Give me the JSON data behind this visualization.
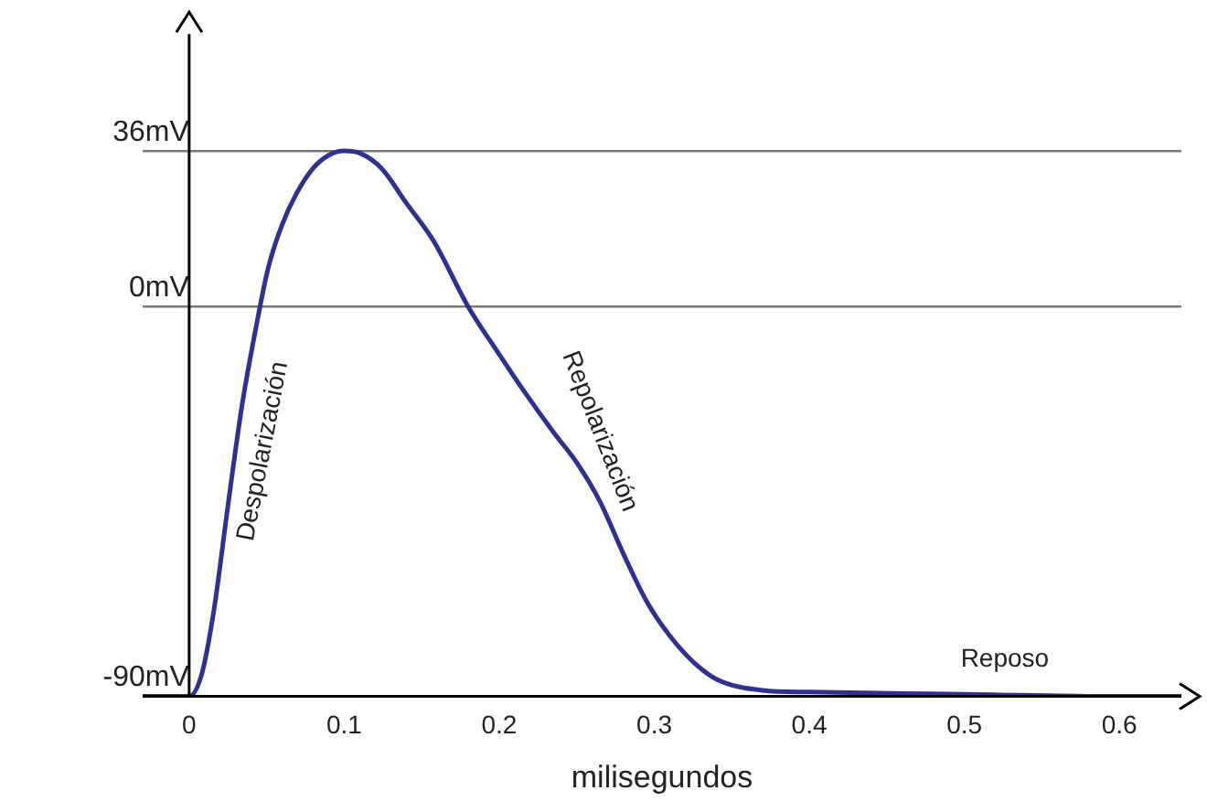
{
  "chart_data": {
    "type": "line",
    "xlabel": "milisegundos",
    "x": [
      -0.03,
      0,
      0.008,
      0.016,
      0.025,
      0.034,
      0.043,
      0.051,
      0.06,
      0.069,
      0.08,
      0.09,
      0.1,
      0.11,
      0.124,
      0.14,
      0.158,
      0.18,
      0.2,
      0.215,
      0.235,
      0.25,
      0.265,
      0.28,
      0.295,
      0.31,
      0.325,
      0.34,
      0.37,
      0.4,
      0.5,
      0.6,
      0.64
    ],
    "series": [
      {
        "color": "#2e3192",
        "values": [
          -90,
          -90,
          -85,
          -70,
          -46,
          -23,
          -5,
          9,
          19,
          26,
          32,
          35,
          36,
          35.5,
          32,
          24,
          15,
          0,
          -11,
          -19,
          -29,
          -36,
          -45,
          -57,
          -68,
          -76,
          -82,
          -86,
          -88.6,
          -89,
          -89.5,
          -90,
          -90
        ]
      }
    ],
    "xlim": [
      -0.03,
      0.64
    ],
    "ylim": [
      -90,
      63
    ],
    "xticks": [
      0,
      0.1,
      0.2,
      0.3,
      0.4,
      0.5,
      0.6
    ],
    "yticks": [
      {
        "value": -90,
        "label": "-90mV"
      },
      {
        "value": 0,
        "label": "0mV"
      },
      {
        "value": 36,
        "label": "36mV"
      }
    ],
    "grid": "y",
    "marker": "none",
    "line_style": "solid",
    "legend": false,
    "annotations": [
      "Despolarización",
      "Repolarización",
      "Reposo"
    ]
  }
}
